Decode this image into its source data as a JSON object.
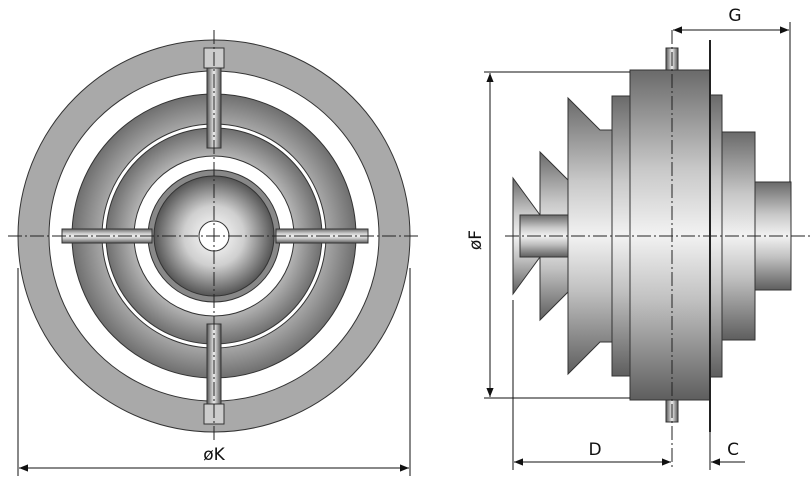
{
  "dimensions": {
    "k": "øK",
    "f": "øF",
    "d": "D",
    "c": "C",
    "g": "G"
  }
}
